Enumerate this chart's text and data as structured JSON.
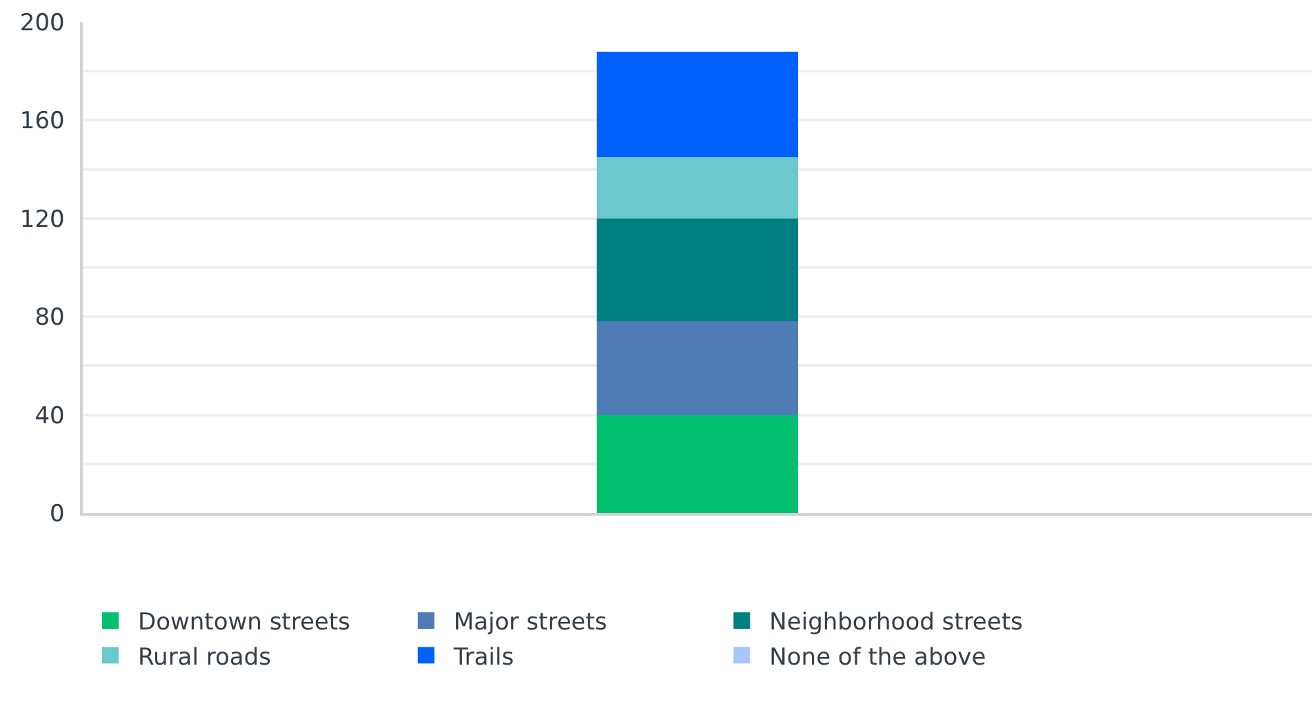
{
  "chart_data": {
    "type": "bar",
    "stacked": true,
    "categories": [
      null
    ],
    "series": [
      {
        "name": "Downtown streets",
        "color": "#00bf6f",
        "values": [
          40
        ]
      },
      {
        "name": "Major streets",
        "color": "#507cb6",
        "values": [
          38
        ]
      },
      {
        "name": "Neighborhood streets",
        "color": "#007f80",
        "values": [
          42
        ]
      },
      {
        "name": "Rural roads",
        "color": "#6bc8cd",
        "values": [
          25
        ]
      },
      {
        "name": "Trails",
        "color": "#0061ff",
        "values": [
          43
        ]
      },
      {
        "name": "None of the above",
        "color": "#a8c5ff",
        "values": [
          0
        ]
      }
    ],
    "ylim": [
      0,
      200
    ],
    "yticks": [
      0,
      {
        "value": 20,
        "label": null
      },
      40,
      {
        "value": 60,
        "label": null
      },
      80,
      {
        "value": 100,
        "label": null
      },
      120,
      {
        "value": 140,
        "label": null
      },
      160,
      {
        "value": 180,
        "label": null
      },
      200
    ],
    "grid": "y",
    "legend": "bottom"
  }
}
